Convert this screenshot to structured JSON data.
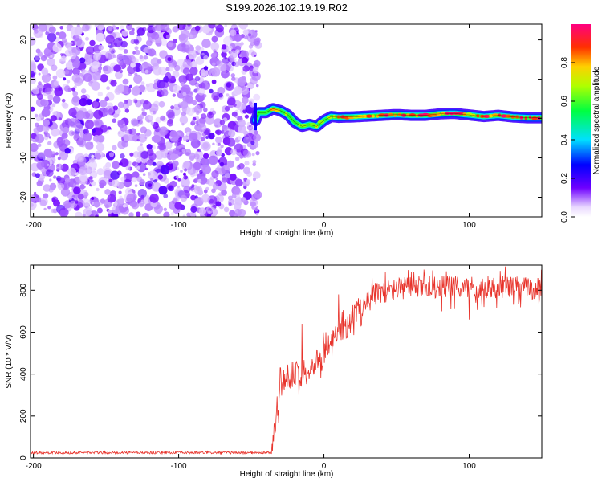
{
  "title": "S199.2026.102.19.19.R02",
  "chart_data": [
    {
      "type": "heatmap",
      "name": "spectrogram",
      "xlabel": "Height of straight line (km)",
      "ylabel": "Frequency (Hz)",
      "xlim": [
        -202,
        150
      ],
      "ylim": [
        -25,
        24
      ],
      "xticks": [
        -200,
        -100,
        0,
        100
      ],
      "xtick_labels": [
        "-200",
        "-100",
        "0",
        "100"
      ],
      "yticks": [
        -20,
        -10,
        0,
        10,
        20
      ],
      "ytick_labels": [
        "-20",
        "-10",
        "0",
        "10",
        "20"
      ],
      "noise_region_x": [
        -202,
        -45
      ],
      "signal_track": {
        "x": [
          -47,
          -45,
          -40,
          -35,
          -30,
          -25,
          -20,
          -15,
          -10,
          -5,
          0,
          5,
          10,
          20,
          30,
          40,
          50,
          60,
          70,
          80,
          90,
          100,
          110,
          120,
          130,
          140,
          150
        ],
        "freq": [
          -0.5,
          1.5,
          1.5,
          2.5,
          2.0,
          1.0,
          -1.0,
          -2.0,
          -1.5,
          -2.0,
          -0.5,
          0.5,
          0.3,
          0.4,
          0.6,
          0.8,
          1.0,
          0.8,
          0.8,
          1.2,
          1.3,
          0.9,
          0.5,
          0.8,
          0.4,
          0.2,
          0.2
        ],
        "amplitude": [
          0.3,
          0.5,
          0.6,
          0.7,
          0.65,
          0.55,
          0.6,
          0.7,
          0.55,
          0.6,
          0.6,
          0.6,
          0.85,
          0.75,
          0.8,
          0.85,
          0.85,
          0.9,
          0.95,
          0.85,
          0.9,
          0.8,
          0.9,
          0.85,
          0.9,
          0.95,
          0.95
        ]
      },
      "colorbar": {
        "label": "Normalized spectral amplitude",
        "range": [
          0,
          1
        ],
        "ticks": [
          0,
          0.2,
          0.4,
          0.6,
          0.8
        ],
        "tick_labels": [
          "0.0",
          "0.2",
          "0.4",
          "0.6",
          "0.8"
        ]
      }
    },
    {
      "type": "line",
      "name": "snr",
      "xlabel": "Height of straight line (km)",
      "ylabel": "SNR (10 * V/V)",
      "xlim": [
        -202,
        150
      ],
      "ylim": [
        0,
        920
      ],
      "xticks": [
        -200,
        -100,
        0,
        100
      ],
      "xtick_labels": [
        "-200",
        "-100",
        "0",
        "100"
      ],
      "yticks": [
        0,
        200,
        400,
        600,
        800
      ],
      "ytick_labels": [
        "0",
        "200",
        "400",
        "600",
        "800"
      ],
      "color": "#e8332b",
      "series": [
        {
          "name": "SNR",
          "x": [
            -202,
            -100,
            -36,
            -35,
            -32,
            -30,
            -28,
            -25,
            -22,
            -20,
            -18,
            -15,
            -12,
            -10,
            -8,
            -5,
            -3,
            0,
            3,
            5,
            8,
            10,
            12,
            15,
            18,
            20,
            25,
            30,
            35,
            40,
            45,
            50,
            55,
            60,
            70,
            80,
            90,
            100,
            110,
            120,
            130,
            140,
            150
          ],
          "y": [
            25,
            25,
            25,
            80,
            250,
            330,
            370,
            400,
            350,
            390,
            420,
            380,
            420,
            430,
            440,
            460,
            480,
            500,
            530,
            550,
            580,
            600,
            610,
            620,
            640,
            680,
            720,
            760,
            780,
            790,
            800,
            805,
            810,
            815,
            815,
            815,
            815,
            810,
            815,
            815,
            815,
            810,
            805
          ]
        }
      ],
      "spikes": {
        "x": [
          -30,
          -15,
          10,
          90,
          100
        ],
        "y": [
          430,
          640,
          780,
          710,
          660
        ]
      },
      "noise_amplitude_low": 12,
      "noise_amplitude_high": 55
    }
  ]
}
